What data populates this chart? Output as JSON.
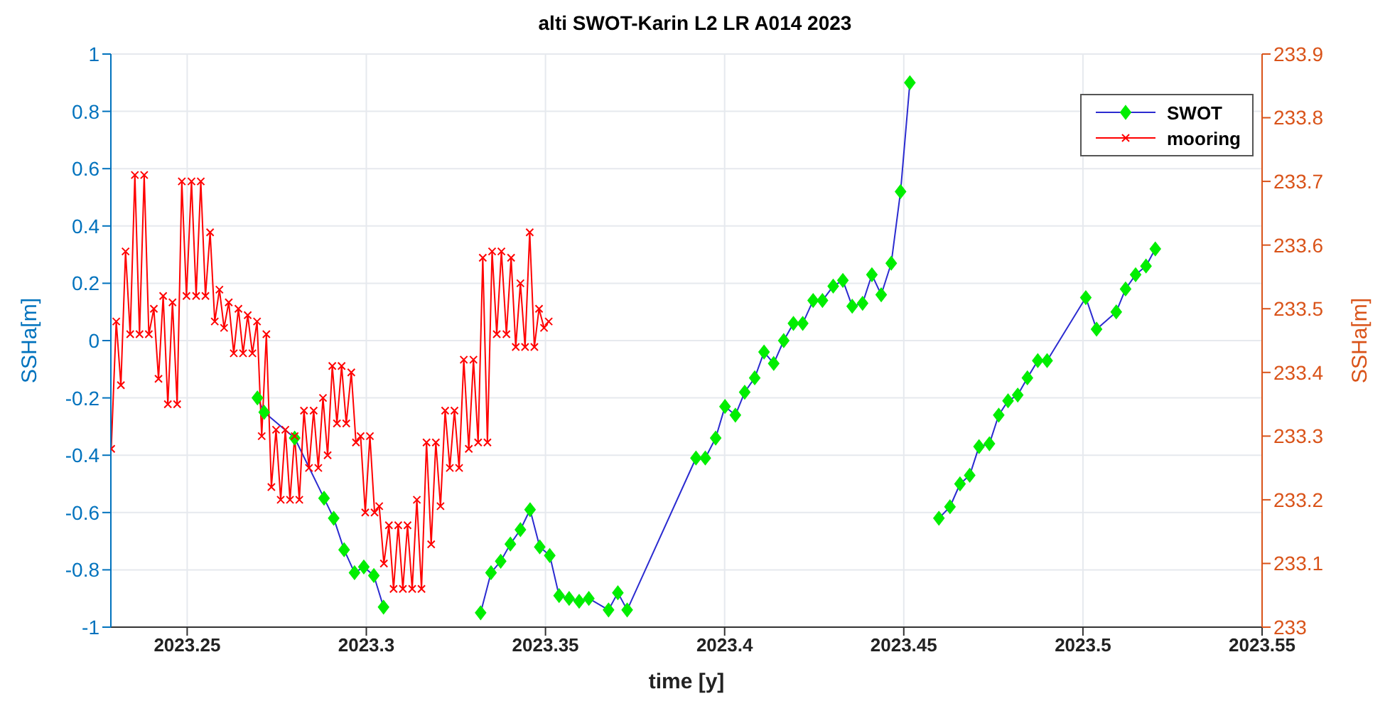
{
  "chart_data": {
    "type": "line",
    "title": "alti SWOT-Karin L2 LR A014 2023",
    "xlabel": "time [y]",
    "ylabel": "SSHa[m]",
    "y2label": "SSHa[m]",
    "xlim": [
      2023.2287,
      2023.55
    ],
    "xticks": [
      2023.25,
      2023.3,
      2023.35,
      2023.4,
      2023.45,
      2023.5,
      2023.55
    ],
    "ylim": [
      -1,
      1
    ],
    "yticks": [
      -1,
      -0.8,
      -0.6,
      -0.4,
      -0.2,
      0,
      0.2,
      0.4,
      0.6,
      0.8,
      1
    ],
    "y2lim": [
      233,
      233.9
    ],
    "y2ticks": [
      233,
      233.1,
      233.2,
      233.3,
      233.4,
      233.5,
      233.6,
      233.7,
      233.8,
      233.9
    ],
    "grid": true,
    "legend": "top right",
    "line_style": "solid",
    "series": [
      {
        "name": "SWOT",
        "color": "#2b2bd0",
        "marker": "diamond",
        "colors": [
          "#00ee00",
          "#00ee00",
          "#00ee00",
          "#00ee00",
          "#00ee00",
          "#00ee00",
          "#00ee00",
          "#00ee00",
          "#00ee00",
          "#00ee00",
          "#00ee00",
          "#00ee00",
          "#00ee00",
          "#00ee00",
          "#00ee00",
          "#00ee00",
          "#00ee00",
          "#00ee00",
          "#00ee00",
          "#00ee00",
          "#00ee00",
          "#00ee00",
          "#00ee00",
          "#00ee00",
          "#00ee00",
          "#00ee00",
          "#00ee00",
          "#00ee00",
          "#00ee00",
          "#00ee00",
          "#00ee00",
          "#00ee00",
          "#00ee00",
          "#00ee00",
          "#00ee00",
          "#00ee00",
          "#00ee00",
          "#00ee00",
          "#00ee00",
          "#00ee00",
          "#00ee00",
          "#00ee00",
          "#00ee00",
          "#00ee00",
          "#00ee00",
          "#00ee00",
          "#00ee00",
          "#00ee00",
          "#00ee00",
          "#00ee00",
          "#00ee00",
          "#00ee00",
          "#00ee00",
          "#00ee00",
          "#00ee00",
          "#00ee00",
          "#00ee00",
          "#00ee00",
          "#00ee00",
          "#00ee00",
          "#00ee00",
          "#00ee00",
          "#00ee00",
          "#00ee00",
          "#00ee00",
          "#00ee00",
          "#00ee00",
          "#00ee00",
          "#00ee00"
        ],
        "x": [
          2023.2696,
          2023.2715,
          2023.28,
          2023.2882,
          2023.2909,
          2023.2938,
          2023.2967,
          2023.2993,
          2023.3021,
          2023.3048,
          2023.318,
          2023.3319,
          2023.3348,
          2023.3375,
          2023.3402,
          2023.343,
          2023.3457,
          2023.3484,
          2023.3512,
          2023.3538,
          2023.3566,
          2023.3594,
          2023.3621,
          2023.3676,
          2023.3702,
          2023.3728,
          2023.392,
          2023.3946,
          2023.3975,
          2023.4001,
          2023.403,
          2023.4056,
          2023.4084,
          2023.411,
          2023.4137,
          2023.4165,
          2023.4192,
          2023.4218,
          2023.4247,
          2023.4273,
          2023.4303,
          2023.433,
          2023.4356,
          2023.4385,
          2023.4411,
          2023.4437,
          2023.4465,
          2023.4491,
          2023.4517,
          2023.456,
          2023.4598,
          2023.4629,
          2023.4657,
          2023.4684,
          2023.471,
          2023.4739,
          2023.4765,
          2023.4791,
          2023.4818,
          2023.4845,
          2023.4874,
          2023.49,
          2023.5008,
          2023.5038,
          2023.5093,
          2023.5119,
          2023.5147,
          2023.5176,
          2023.5202
        ],
        "values": [
          -0.2,
          -0.25,
          -0.34,
          -0.55,
          -0.62,
          -0.73,
          -0.81,
          -0.79,
          -0.82,
          -0.93,
          null,
          -0.95,
          -0.81,
          -0.77,
          -0.71,
          -0.66,
          -0.59,
          -0.72,
          -0.75,
          -0.89,
          -0.9,
          -0.91,
          -0.9,
          -0.94,
          -0.88,
          -0.94,
          -0.41,
          -0.41,
          -0.34,
          -0.23,
          -0.26,
          -0.18,
          -0.13,
          -0.04,
          -0.08,
          0,
          0.06,
          0.06,
          0.14,
          0.14,
          0.19,
          0.21,
          0.12,
          0.13,
          0.23,
          0.16,
          0.27,
          0.52,
          0.9,
          null,
          -0.62,
          -0.58,
          -0.5,
          -0.47,
          -0.37,
          -0.36,
          -0.26,
          -0.21,
          -0.19,
          -0.13,
          -0.07,
          -0.07,
          0.15,
          0.04,
          0.1,
          0.18,
          0.23,
          0.26,
          0.32
        ]
      },
      {
        "name": "mooring",
        "color": "#ff0000",
        "marker": "cross",
        "axis": "y2",
        "x": [
          2023.2288,
          2023.2302,
          2023.2315,
          2023.2328,
          2023.2341,
          2023.2354,
          2023.2367,
          2023.238,
          2023.2393,
          2023.2407,
          2023.242,
          2023.2433,
          2023.2446,
          2023.2459,
          2023.2472,
          2023.2485,
          2023.2498,
          2023.2512,
          2023.2525,
          2023.2538,
          2023.2551,
          2023.2564,
          2023.2577,
          2023.259,
          2023.2603,
          2023.2616,
          2023.263,
          2023.2643,
          2023.2656,
          2023.2669,
          2023.2682,
          2023.2695,
          2023.2708,
          2023.2721,
          2023.2735,
          2023.2748,
          2023.2761,
          2023.2774,
          2023.2787,
          2023.28,
          2023.2813,
          2023.2826,
          2023.284,
          2023.2853,
          2023.2866,
          2023.2879,
          2023.2892,
          2023.2905,
          2023.2918,
          2023.2931,
          2023.2944,
          2023.2958,
          2023.2971,
          2023.2984,
          2023.2997,
          2023.301,
          2023.3023,
          2023.3036,
          2023.3049,
          2023.3063,
          2023.3076,
          2023.3089,
          2023.3102,
          2023.3115,
          2023.3128,
          2023.3141,
          2023.3154,
          2023.3168,
          2023.3181,
          2023.3194,
          2023.3207,
          2023.322,
          2023.3233,
          2023.3246,
          2023.3259,
          2023.3272,
          2023.3286,
          2023.3299,
          2023.3312,
          2023.3325,
          2023.3338,
          2023.3351,
          2023.3364,
          2023.3377,
          2023.3391,
          2023.3404,
          2023.3417,
          2023.343,
          2023.3443,
          2023.3456,
          2023.3469,
          2023.3482,
          2023.3496,
          2023.3509
        ],
        "values": [
          233.28,
          233.48,
          233.38,
          233.59,
          233.46,
          233.71,
          233.46,
          233.71,
          233.46,
          233.5,
          233.39,
          233.52,
          233.35,
          233.51,
          233.35,
          233.7,
          233.52,
          233.7,
          233.52,
          233.7,
          233.52,
          233.62,
          233.48,
          233.53,
          233.47,
          233.51,
          233.43,
          233.5,
          233.43,
          233.49,
          233.43,
          233.48,
          233.3,
          233.46,
          233.22,
          233.31,
          233.2,
          233.31,
          233.2,
          233.3,
          233.2,
          233.34,
          233.25,
          233.34,
          233.25,
          233.36,
          233.27,
          233.41,
          233.32,
          233.41,
          233.32,
          233.4,
          233.29,
          233.3,
          233.18,
          233.3,
          233.18,
          233.19,
          233.1,
          233.16,
          233.06,
          233.16,
          233.06,
          233.16,
          233.06,
          233.2,
          233.06,
          233.29,
          233.13,
          233.29,
          233.19,
          233.34,
          233.25,
          233.34,
          233.25,
          233.42,
          233.28,
          233.42,
          233.29,
          233.58,
          233.29,
          233.59,
          233.46,
          233.59,
          233.46,
          233.58,
          233.44,
          233.54,
          233.44,
          233.62,
          233.44,
          233.5,
          233.47,
          233.48
        ]
      }
    ]
  }
}
